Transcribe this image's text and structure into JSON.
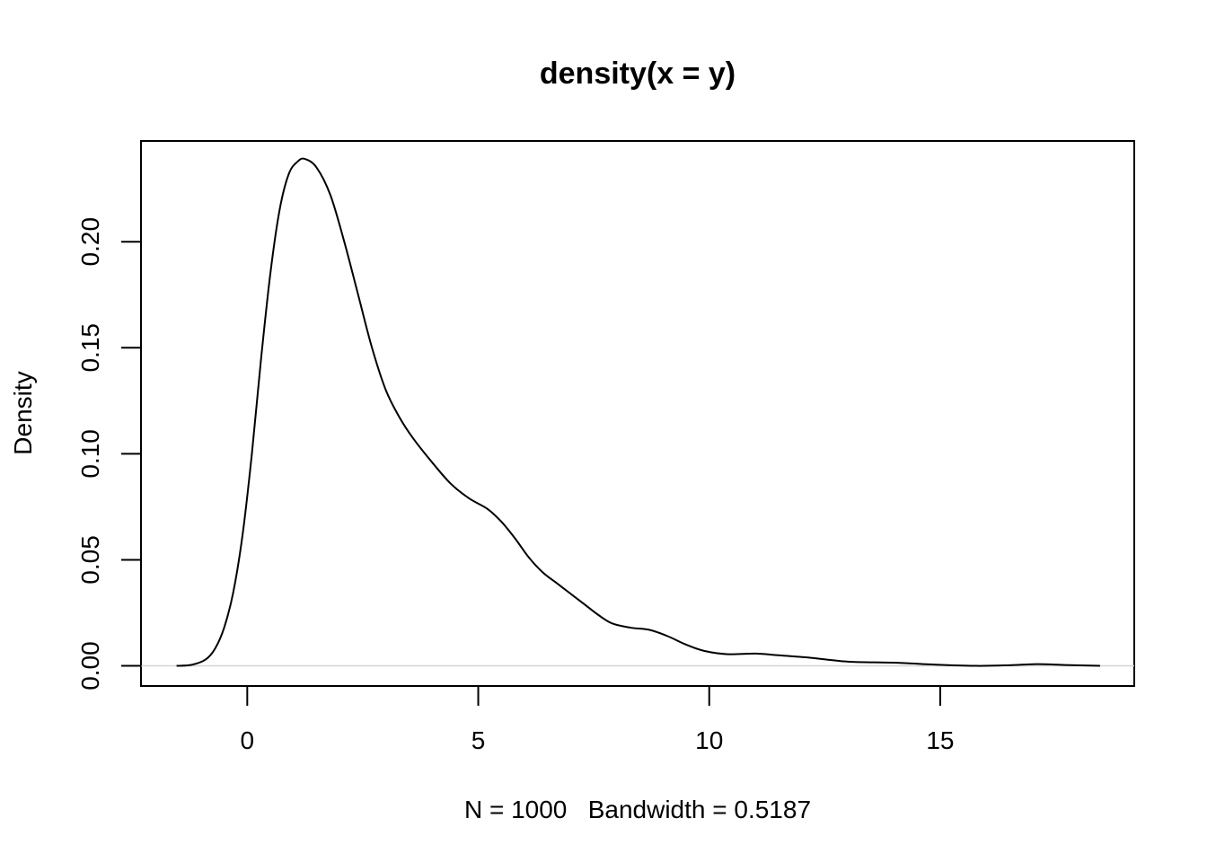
{
  "chart_data": {
    "type": "line",
    "title": "density(x = y)",
    "xlabel": "N = 1000   Bandwidth = 0.5187",
    "ylabel": "Density",
    "xlim": [
      -2.3,
      19.2
    ],
    "ylim": [
      -0.0095,
      0.2475
    ],
    "x_ticks": [
      0,
      5,
      10,
      15
    ],
    "x_tick_labels": [
      "0",
      "5",
      "10",
      "15"
    ],
    "y_ticks": [
      0.0,
      0.05,
      0.1,
      0.15,
      0.2
    ],
    "y_tick_labels": [
      "0.00",
      "0.05",
      "0.10",
      "0.15",
      "0.20"
    ],
    "grid": false,
    "baseline": 0,
    "series": [
      {
        "color": "#000000",
        "points": [
          [
            -1.53,
            0.0
          ],
          [
            -1.2,
            0.0005
          ],
          [
            -0.9,
            0.003
          ],
          [
            -0.7,
            0.008
          ],
          [
            -0.5,
            0.018
          ],
          [
            -0.3,
            0.035
          ],
          [
            -0.1,
            0.062
          ],
          [
            0.1,
            0.1
          ],
          [
            0.3,
            0.145
          ],
          [
            0.5,
            0.185
          ],
          [
            0.7,
            0.215
          ],
          [
            0.9,
            0.232
          ],
          [
            1.1,
            0.238
          ],
          [
            1.25,
            0.239
          ],
          [
            1.5,
            0.235
          ],
          [
            1.8,
            0.222
          ],
          [
            2.1,
            0.2
          ],
          [
            2.4,
            0.175
          ],
          [
            2.7,
            0.15
          ],
          [
            3.0,
            0.13
          ],
          [
            3.3,
            0.117
          ],
          [
            3.6,
            0.107
          ],
          [
            4.0,
            0.096
          ],
          [
            4.4,
            0.086
          ],
          [
            4.8,
            0.079
          ],
          [
            5.2,
            0.074
          ],
          [
            5.5,
            0.068
          ],
          [
            5.8,
            0.06
          ],
          [
            6.1,
            0.051
          ],
          [
            6.4,
            0.044
          ],
          [
            6.7,
            0.039
          ],
          [
            7.0,
            0.034
          ],
          [
            7.3,
            0.029
          ],
          [
            7.6,
            0.024
          ],
          [
            7.9,
            0.02
          ],
          [
            8.3,
            0.018
          ],
          [
            8.7,
            0.017
          ],
          [
            9.1,
            0.014
          ],
          [
            9.5,
            0.01
          ],
          [
            9.9,
            0.007
          ],
          [
            10.4,
            0.0055
          ],
          [
            11.0,
            0.0058
          ],
          [
            11.5,
            0.005
          ],
          [
            12.2,
            0.0038
          ],
          [
            13.0,
            0.002
          ],
          [
            14.0,
            0.0015
          ],
          [
            15.0,
            0.0005
          ],
          [
            15.8,
            0.0
          ],
          [
            16.5,
            0.0003
          ],
          [
            17.1,
            0.0008
          ],
          [
            17.7,
            0.0004
          ],
          [
            18.46,
            0.0
          ]
        ]
      }
    ]
  }
}
